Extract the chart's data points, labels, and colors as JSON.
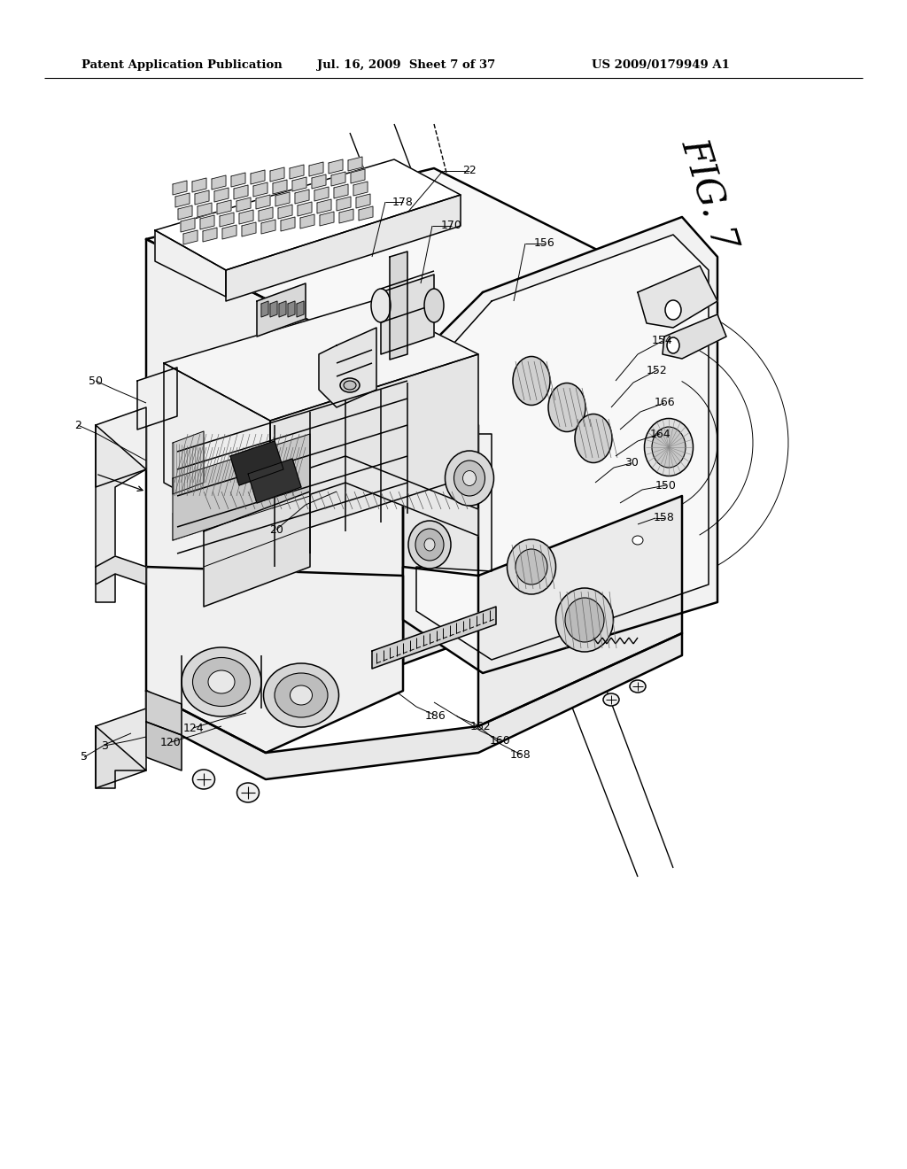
{
  "bg_color": "#ffffff",
  "header_left": "Patent Application Publication",
  "header_mid": "Jul. 16, 2009  Sheet 7 of 37",
  "header_right": "US 2009/0179949 A1",
  "fig_label": "FIG. 7",
  "line_color": "#000000",
  "text_color": "#000000",
  "lw_outer": 1.8,
  "lw_inner": 1.1,
  "lw_thin": 0.7,
  "label_fs": 9,
  "header_fs": 9.5
}
